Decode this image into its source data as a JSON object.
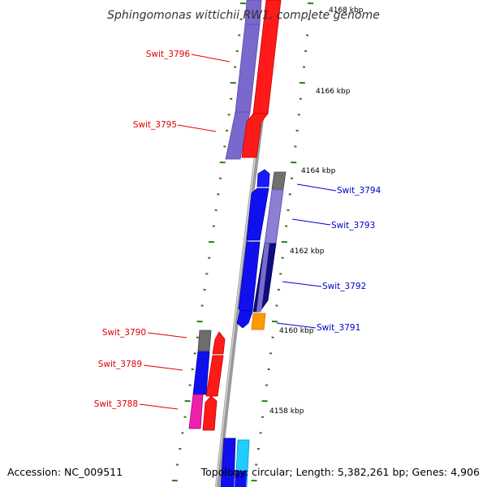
{
  "title": "Sphingomonas wittichii RW1, complete genome",
  "footer": {
    "accession": "Accession: NC_009511",
    "summary": "Topology: circular; Length: 5,382,261 bp; Genes: 4,906"
  },
  "ruler_labels": [
    "4168 kbp",
    "4166 kbp",
    "4164 kbp",
    "4162 kbp",
    "4160 kbp",
    "4158 kbp"
  ],
  "genes": {
    "left": [
      "Swit_3796",
      "Swit_3795",
      "Swit_3790",
      "Swit_3789",
      "Swit_3788"
    ],
    "right": [
      "Swit_3794",
      "Swit_3793",
      "Swit_3792",
      "Swit_3791"
    ]
  },
  "colors": {
    "reverse_strand_label": "#e00000",
    "forward_strand_label": "#0000cc",
    "backbone": "#8a8a8a",
    "tick": "#2e7d1e"
  }
}
